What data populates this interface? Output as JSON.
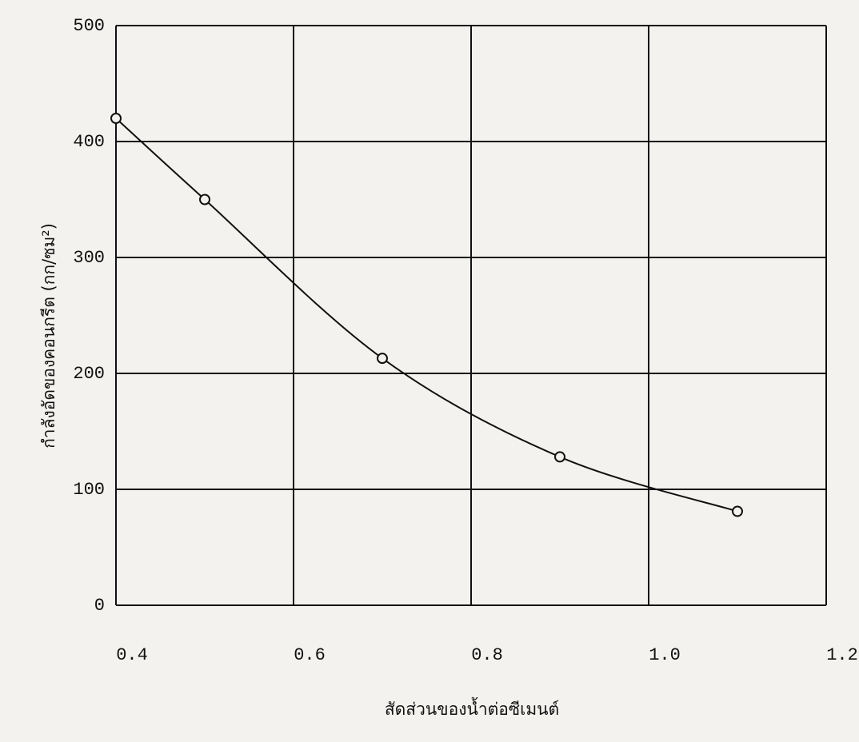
{
  "chart_data": {
    "type": "line",
    "x_label": "สัดส่วนของน้ำต่อซีเมนต์",
    "y_label": "กำลังอัดของคอนกรีต   (กก/ซม²)",
    "x": [
      0.4,
      0.5,
      0.7,
      0.9,
      1.1
    ],
    "values": [
      420,
      350,
      213,
      128,
      81
    ],
    "color": "#111111",
    "xlim": [
      0.4,
      1.2
    ],
    "xticks": [
      0.4,
      0.6,
      0.8,
      {
        "value": 1,
        "label": "1.0"
      },
      1.2
    ],
    "ylim": [
      0,
      500
    ],
    "yticks": [
      0,
      100,
      200,
      300,
      400,
      500
    ],
    "grid": true
  }
}
